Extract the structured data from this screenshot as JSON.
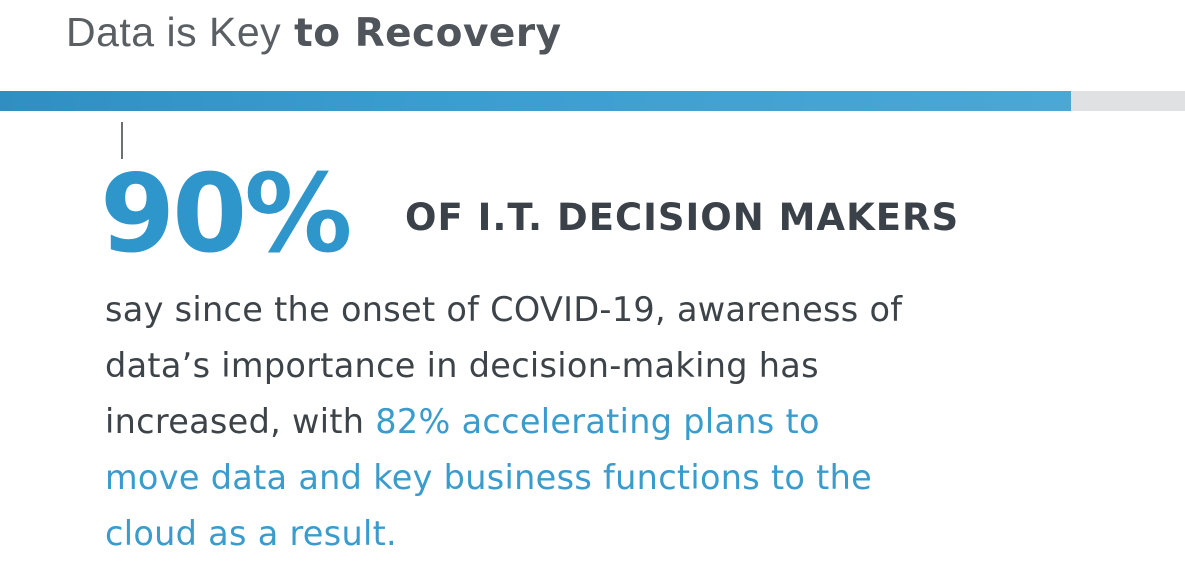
{
  "header": {
    "title_light": "Data is Key",
    "title_bold": "to Recovery"
  },
  "stat": {
    "value": "90%",
    "label": "OF I.T. DECISION MAKERS"
  },
  "body": {
    "line1": "say since the onset of COVID-19, awareness of",
    "line2": "data’s importance in decision-making has",
    "line3_plain": "increased, with ",
    "line3_accent": "82% accelerating plans to",
    "line4_accent": "move data and key business functions to the",
    "line5_accent": "cloud as a result."
  },
  "colors": {
    "accent": "#3a9ccd",
    "text": "#3c4349",
    "bar": "#3a9dd0",
    "bar_rest": "#dfe1e2"
  }
}
